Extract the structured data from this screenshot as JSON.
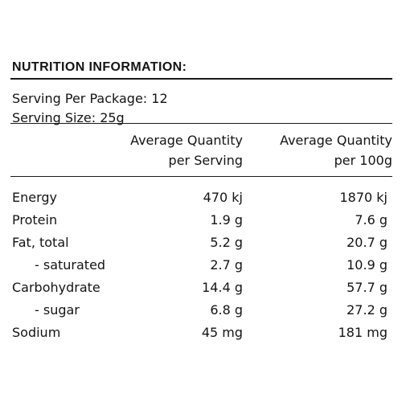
{
  "panel": {
    "title": "NUTRITION INFORMATION:",
    "serving_per_package": "Serving Per Package: 12",
    "serving_size": "Serving Size: 25g",
    "columns": [
      {
        "line1": "Average Quantity",
        "line2": "per Serving"
      },
      {
        "line1": "Average Quantity",
        "line2": "per 100g"
      }
    ],
    "rows": [
      {
        "label": "Energy",
        "per_serving": "470 kj",
        "per_100g": "1870 kj"
      },
      {
        "label": "Protein",
        "per_serving": "1.9 g",
        "per_100g": "7.6 g"
      },
      {
        "label": "Fat, total",
        "per_serving": "5.2 g",
        "per_100g": "20.7 g"
      },
      {
        "label": "- saturated",
        "per_serving": "2.7 g",
        "per_100g": "10.9 g"
      },
      {
        "label": "Carbohydrate",
        "per_serving": "14.4 g",
        "per_100g": "57.7 g"
      },
      {
        "label": "- sugar",
        "per_serving": "6.8 g",
        "per_100g": "27.2 g"
      },
      {
        "label": "Sodium",
        "per_serving": "45 mg",
        "per_100g": "181 mg"
      }
    ]
  }
}
